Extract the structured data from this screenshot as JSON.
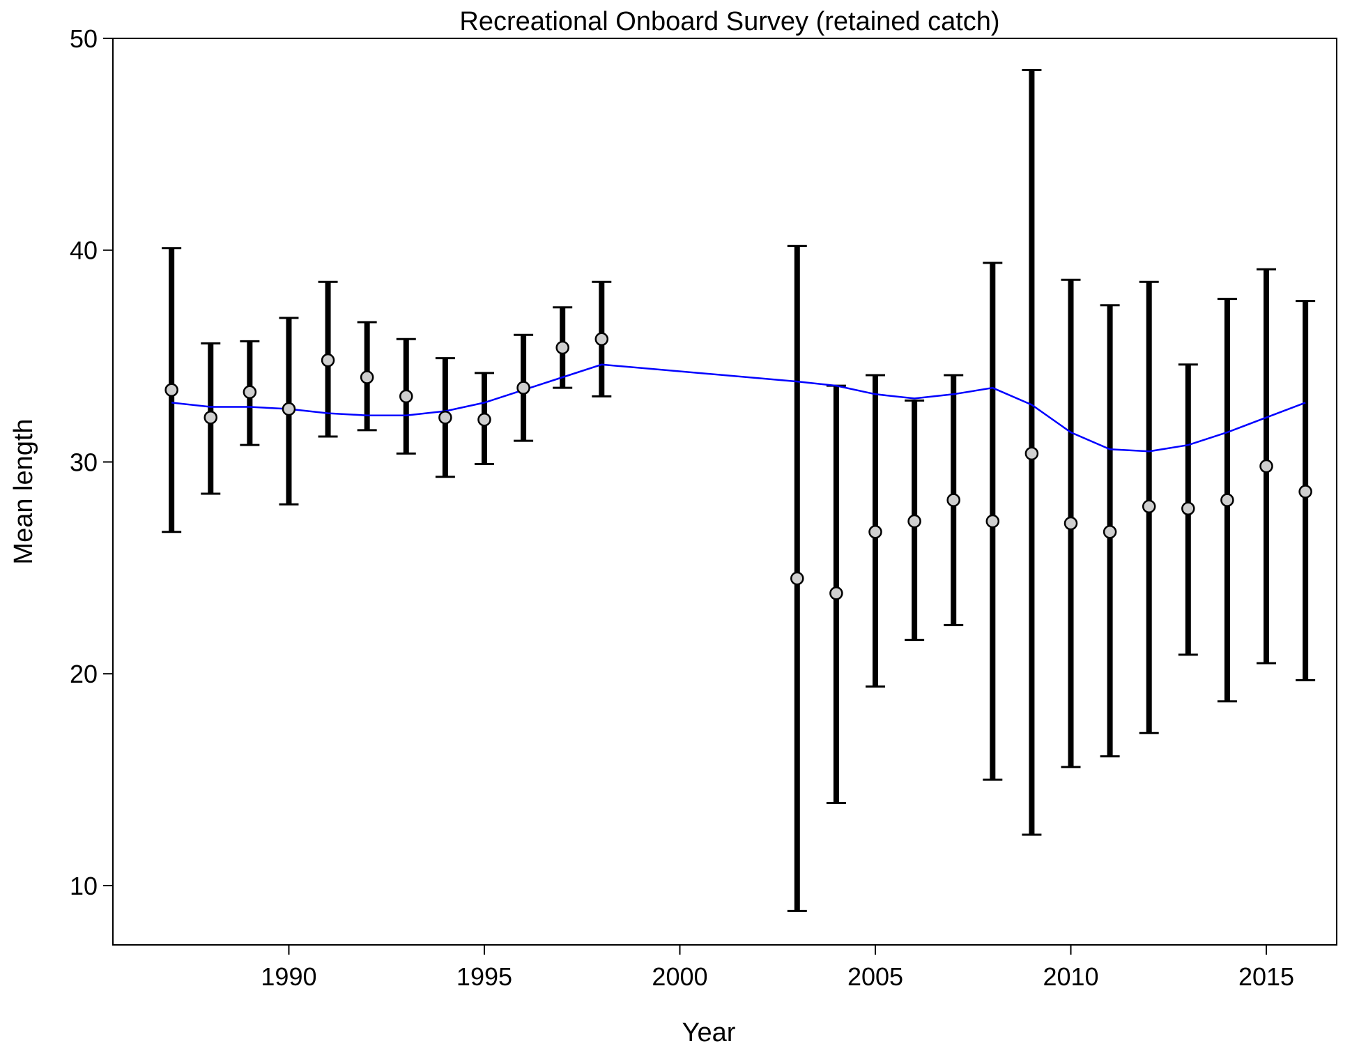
{
  "chart_data": {
    "type": "scatter",
    "title": "Recreational Onboard Survey (retained catch)",
    "xlabel": "Year",
    "ylabel": "Mean length",
    "xlim": [
      1985.5,
      2016.8
    ],
    "ylim": [
      7.2,
      50
    ],
    "xticks": [
      1990,
      1995,
      2000,
      2005,
      2010,
      2015
    ],
    "yticks": [
      10,
      20,
      30,
      40,
      50
    ],
    "grid": false,
    "colors": {
      "observed_fill": "#cfcfcf",
      "error_bar": "#000000",
      "expected_line": "#0000ff"
    },
    "series": [
      {
        "kind": "observed_with_error",
        "points": [
          {
            "x": 1987,
            "y": 33.4,
            "lo": 26.7,
            "hi": 40.1
          },
          {
            "x": 1988,
            "y": 32.1,
            "lo": 28.5,
            "hi": 35.6
          },
          {
            "x": 1989,
            "y": 33.3,
            "lo": 30.8,
            "hi": 35.7
          },
          {
            "x": 1990,
            "y": 32.5,
            "lo": 28.0,
            "hi": 36.8
          },
          {
            "x": 1991,
            "y": 34.8,
            "lo": 31.2,
            "hi": 38.5
          },
          {
            "x": 1992,
            "y": 34.0,
            "lo": 31.5,
            "hi": 36.6
          },
          {
            "x": 1993,
            "y": 33.1,
            "lo": 30.4,
            "hi": 35.8
          },
          {
            "x": 1994,
            "y": 32.1,
            "lo": 29.3,
            "hi": 34.9
          },
          {
            "x": 1995,
            "y": 32.0,
            "lo": 29.9,
            "hi": 34.2
          },
          {
            "x": 1996,
            "y": 33.5,
            "lo": 31.0,
            "hi": 36.0
          },
          {
            "x": 1997,
            "y": 35.4,
            "lo": 33.5,
            "hi": 37.3
          },
          {
            "x": 1998,
            "y": 35.8,
            "lo": 33.1,
            "hi": 38.5
          },
          {
            "x": 2003,
            "y": 24.5,
            "lo": 8.8,
            "hi": 40.2
          },
          {
            "x": 2004,
            "y": 23.8,
            "lo": 13.9,
            "hi": 33.6
          },
          {
            "x": 2005,
            "y": 26.7,
            "lo": 19.4,
            "hi": 34.1
          },
          {
            "x": 2006,
            "y": 27.2,
            "lo": 21.6,
            "hi": 32.9
          },
          {
            "x": 2007,
            "y": 28.2,
            "lo": 22.3,
            "hi": 34.1
          },
          {
            "x": 2008,
            "y": 27.2,
            "lo": 15.0,
            "hi": 39.4
          },
          {
            "x": 2009,
            "y": 30.4,
            "lo": 12.4,
            "hi": 48.5
          },
          {
            "x": 2010,
            "y": 27.1,
            "lo": 15.6,
            "hi": 38.6
          },
          {
            "x": 2011,
            "y": 26.7,
            "lo": 16.1,
            "hi": 37.4
          },
          {
            "x": 2012,
            "y": 27.9,
            "lo": 17.2,
            "hi": 38.5
          },
          {
            "x": 2013,
            "y": 27.8,
            "lo": 20.9,
            "hi": 34.6
          },
          {
            "x": 2014,
            "y": 28.2,
            "lo": 18.7,
            "hi": 37.7
          },
          {
            "x": 2015,
            "y": 29.8,
            "lo": 20.5,
            "hi": 39.1
          },
          {
            "x": 2016,
            "y": 28.6,
            "lo": 19.7,
            "hi": 37.6
          }
        ]
      },
      {
        "kind": "expected_line",
        "x": [
          1987,
          1988,
          1989,
          1990,
          1991,
          1992,
          1993,
          1994,
          1995,
          1996,
          1997,
          1998,
          2003,
          2004,
          2005,
          2006,
          2007,
          2008,
          2009,
          2010,
          2011,
          2012,
          2013,
          2014,
          2015,
          2016
        ],
        "y": [
          32.8,
          32.6,
          32.6,
          32.5,
          32.3,
          32.2,
          32.2,
          32.4,
          32.8,
          33.4,
          34.0,
          34.6,
          33.8,
          33.6,
          33.2,
          33.0,
          33.2,
          33.5,
          32.7,
          31.4,
          30.6,
          30.5,
          30.8,
          31.4,
          32.1,
          32.8
        ]
      }
    ]
  }
}
